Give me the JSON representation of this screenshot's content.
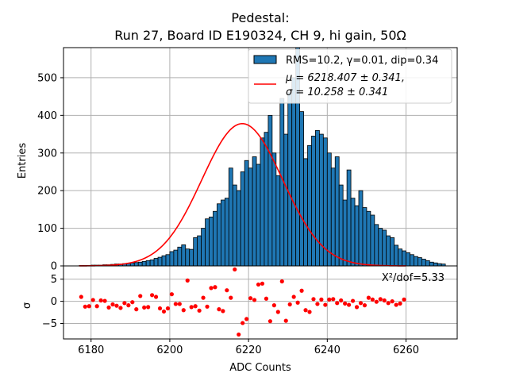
{
  "chart_data": {
    "type": "bar",
    "title_line1": "Pedestal:",
    "title_line2": "Run 27, Board ID E190324, CH 9, hi gain, 50Ω",
    "xlabel": "ADC Counts",
    "ylabel_main": "Entries",
    "ylabel_resid": "σ",
    "xlim": [
      6173,
      6273
    ],
    "ylim_main": [
      0,
      580
    ],
    "ylim_resid": [
      -8.5,
      8
    ],
    "x_ticks": [
      6180,
      6200,
      6220,
      6240,
      6260
    ],
    "y_ticks_main": [
      0,
      100,
      200,
      300,
      400,
      500
    ],
    "y_ticks_resid": [
      -5,
      0,
      5
    ],
    "grid": true,
    "legend_position": "top-right",
    "legend": {
      "hist_label": "RMS=10.2, γ=0.01, dip=0.34",
      "fit_line1": "μ = 6218.407 ± 0.341,",
      "fit_line2": "σ = 10.258 ± 0.341"
    },
    "chi2_label": "X²/dof=5.33",
    "fit": {
      "mu": 6218.407,
      "sigma": 10.258,
      "amplitude": 378,
      "x_range": [
        6177,
        6260
      ]
    },
    "histogram": {
      "bin_start": 6177,
      "bin_width": 1,
      "counts": [
        1,
        1,
        1,
        2,
        2,
        2,
        3,
        3,
        4,
        5,
        5,
        6,
        7,
        8,
        9,
        10,
        12,
        14,
        16,
        20,
        23,
        27,
        30,
        38,
        42,
        50,
        56,
        45,
        44,
        75,
        80,
        100,
        125,
        130,
        145,
        165,
        175,
        180,
        260,
        215,
        200,
        250,
        280,
        260,
        290,
        270,
        340,
        355,
        400,
        300,
        240,
        445,
        350,
        460,
        500,
        605,
        410,
        285,
        320,
        345,
        360,
        350,
        340,
        300,
        260,
        290,
        215,
        175,
        255,
        180,
        160,
        200,
        155,
        145,
        135,
        110,
        100,
        95,
        80,
        75,
        55,
        45,
        40,
        35,
        30,
        25,
        22,
        18,
        14,
        10,
        8,
        6,
        5
      ]
    },
    "residuals": {
      "x": [
        6177.5,
        6178.5,
        6179.5,
        6180.5,
        6181.5,
        6182.5,
        6183.5,
        6184.5,
        6185.5,
        6186.5,
        6187.5,
        6188.5,
        6189.5,
        6190.5,
        6191.5,
        6192.5,
        6193.5,
        6194.5,
        6195.5,
        6196.5,
        6197.5,
        6198.5,
        6199.5,
        6200.5,
        6201.5,
        6202.5,
        6203.5,
        6204.5,
        6205.5,
        6206.5,
        6207.5,
        6208.5,
        6209.5,
        6210.5,
        6211.5,
        6212.5,
        6213.5,
        6214.5,
        6215.5,
        6216.5,
        6217.5,
        6218.5,
        6219.5,
        6220.5,
        6221.5,
        6222.5,
        6223.5,
        6224.5,
        6225.5,
        6226.5,
        6227.5,
        6228.5,
        6229.5,
        6230.5,
        6231.5,
        6232.5,
        6233.5,
        6234.5,
        6235.5,
        6236.5,
        6237.5,
        6238.5,
        6239.5,
        6240.5,
        6241.5,
        6242.5,
        6243.5,
        6244.5,
        6245.5,
        6246.5,
        6247.5,
        6248.5,
        6249.5,
        6250.5,
        6251.5,
        6252.5,
        6253.5,
        6254.5,
        6255.5,
        6256.5,
        6257.5,
        6258.5,
        6259.5
      ],
      "y": [
        1.0,
        -1.2,
        -1.1,
        0.3,
        -1.1,
        0.2,
        0.1,
        -1.4,
        -0.7,
        -1.0,
        -1.5,
        -0.4,
        -0.9,
        -0.2,
        -1.8,
        1.2,
        -1.4,
        -1.3,
        1.4,
        1.0,
        -1.6,
        -2.3,
        -1.6,
        1.6,
        -0.6,
        -0.6,
        -2.0,
        4.7,
        -1.3,
        -1.1,
        -2.1,
        0.8,
        -1.2,
        3.0,
        3.2,
        -1.8,
        -2.2,
        2.5,
        0.8,
        7.2,
        -7.5,
        -4.9,
        -4.0,
        0.7,
        0.3,
        3.8,
        4.0,
        0.6,
        -4.5,
        -0.9,
        -2.4,
        4.5,
        -4.4,
        -0.7,
        1.0,
        -0.3,
        2.4,
        -2.0,
        -2.4,
        0.5,
        -0.6,
        0.4,
        -0.8,
        0.4,
        0.5,
        -0.4,
        0.2,
        -0.5,
        -0.8,
        0.1,
        -1.3,
        -0.4,
        -0.9,
        0.8,
        0.4,
        -0.1,
        0.5,
        0.2,
        -0.4,
        0.0,
        -0.8,
        -0.5,
        0.4
      ]
    },
    "colors": {
      "bar_fill": "#1f77b4",
      "bar_edge": "#000000",
      "fit_line": "#ff0000",
      "resid_marker": "#ff0000",
      "grid": "#b0b0b0"
    }
  }
}
